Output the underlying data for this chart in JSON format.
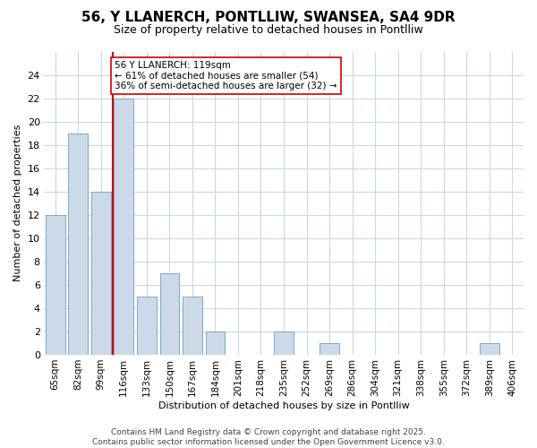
{
  "title_line1": "56, Y LLANERCH, PONTLLIW, SWANSEA, SA4 9DR",
  "title_line2": "Size of property relative to detached houses in Pontlliw",
  "xlabel": "Distribution of detached houses by size in Pontlliw",
  "ylabel": "Number of detached properties",
  "categories": [
    "65sqm",
    "82sqm",
    "99sqm",
    "116sqm",
    "133sqm",
    "150sqm",
    "167sqm",
    "184sqm",
    "201sqm",
    "218sqm",
    "235sqm",
    "252sqm",
    "269sqm",
    "286sqm",
    "304sqm",
    "321sqm",
    "338sqm",
    "355sqm",
    "372sqm",
    "389sqm",
    "406sqm"
  ],
  "values": [
    12,
    19,
    14,
    22,
    5,
    7,
    5,
    2,
    0,
    0,
    2,
    0,
    1,
    0,
    0,
    0,
    0,
    0,
    0,
    1,
    0
  ],
  "bar_color": "#ccd9e8",
  "bar_edge_color": "#7aaac8",
  "vline_color": "#cc0000",
  "vline_position": 2.5,
  "annotation_text": "56 Y LLANERCH: 119sqm\n← 61% of detached houses are smaller (54)\n36% of semi-detached houses are larger (32) →",
  "annotation_box_facecolor": "white",
  "annotation_box_edgecolor": "#cc0000",
  "plot_bg_color": "white",
  "fig_bg_color": "white",
  "grid_color": "#c8d8e8",
  "footer_line1": "Contains HM Land Registry data © Crown copyright and database right 2025.",
  "footer_line2": "Contains public sector information licensed under the Open Government Licence v3.0.",
  "ylim": [
    0,
    26
  ],
  "ytick_max": 26,
  "ytick_interval": 2,
  "title1_fontsize": 11,
  "title2_fontsize": 9,
  "axis_fontsize": 8,
  "tick_fontsize": 8,
  "xtick_fontsize": 7.5,
  "annot_fontsize": 7.5,
  "footer_fontsize": 6.5
}
